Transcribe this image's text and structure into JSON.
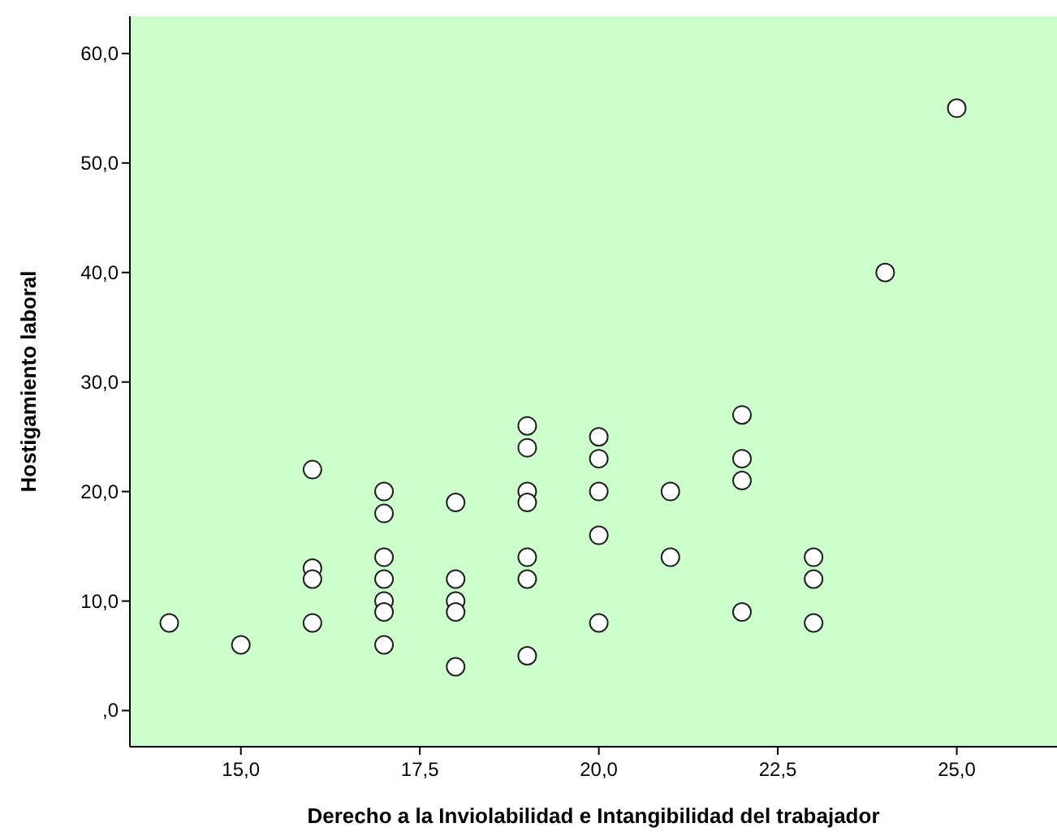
{
  "chart_data": {
    "type": "scatter",
    "xlabel": "Derecho a la Inviolabilidad e Intangibilidad del trabajador",
    "ylabel": "Hostigamiento laboral",
    "marker": "circle",
    "grid": false,
    "xlim": [
      13.45,
      26.4
    ],
    "ylim": [
      -3.3,
      63.4
    ],
    "xticks": [
      {
        "value": 15,
        "label": "15,0"
      },
      {
        "value": 17.5,
        "label": "17,5"
      },
      {
        "value": 20,
        "label": "20,0"
      },
      {
        "value": 22.5,
        "label": "22,5"
      },
      {
        "value": 25,
        "label": "25,0"
      }
    ],
    "yticks": [
      {
        "value": 0,
        "label": ",0"
      },
      {
        "value": 10,
        "label": "10,0"
      },
      {
        "value": 20,
        "label": "20,0"
      },
      {
        "value": 30,
        "label": "30,0"
      },
      {
        "value": 40,
        "label": "40,0"
      },
      {
        "value": 50,
        "label": "50,0"
      },
      {
        "value": 60,
        "label": "60,0"
      }
    ],
    "series": [
      {
        "color": "#ffffff",
        "x": [
          14,
          15,
          16,
          16,
          16,
          16,
          17,
          17,
          17,
          17,
          17,
          17,
          17,
          18,
          18,
          18,
          18,
          18,
          19,
          19,
          19,
          19,
          19,
          19,
          19,
          20,
          20,
          20,
          20,
          20,
          21,
          21,
          22,
          22,
          22,
          22,
          23,
          23,
          23,
          24,
          25
        ],
        "values": [
          8,
          6,
          22,
          13,
          12,
          8,
          20,
          18,
          14,
          12,
          10,
          9,
          6,
          19,
          12,
          10,
          9,
          4,
          26,
          24,
          20,
          19,
          14,
          12,
          5,
          25,
          23,
          20,
          16,
          8,
          20,
          14,
          27,
          23,
          21,
          9,
          14,
          12,
          8,
          40,
          55
        ]
      }
    ]
  }
}
